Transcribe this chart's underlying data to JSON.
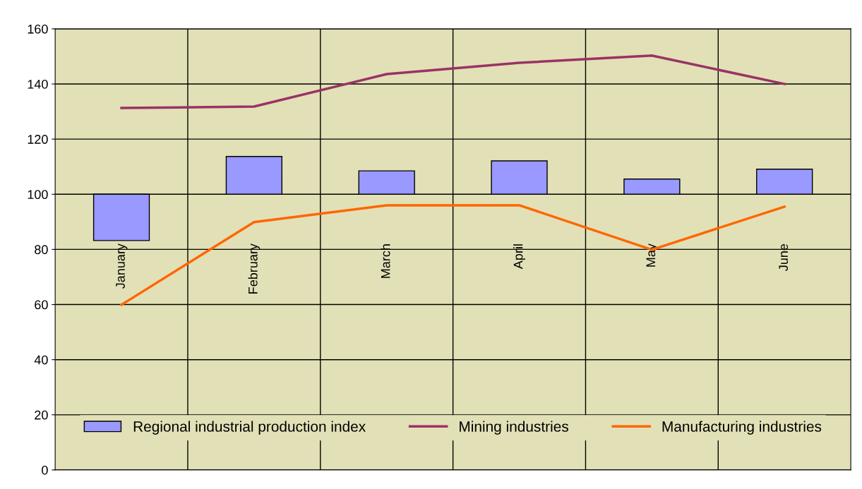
{
  "chart_data": {
    "type": "bar",
    "categories": [
      "January",
      "February",
      "March",
      "April",
      "May",
      "June"
    ],
    "series": [
      {
        "name": "Regional industrial production index",
        "color": "#9999ff",
        "base": [
          100,
          100,
          100,
          100,
          100,
          100
        ],
        "values": [
          -16.8,
          13.7,
          8.5,
          12.1,
          5.5,
          9.1
        ]
      },
      {
        "name": "Mining industries",
        "type": "line",
        "color": "#993366",
        "values": [
          131.3,
          131.8,
          143.6,
          147.7,
          150.3,
          140.0
        ]
      },
      {
        "name": "Manufacturing industries",
        "type": "line",
        "color": "#ff6600",
        "values": [
          59.9,
          89.9,
          96.0,
          96.0,
          79.9,
          95.5
        ]
      }
    ],
    "ylim": [
      0,
      160
    ],
    "yticks": [
      0,
      20,
      40,
      60,
      80,
      100,
      120,
      140,
      160
    ],
    "grid": true,
    "legend": "bottom",
    "marker": "none",
    "line_style": "solid"
  }
}
